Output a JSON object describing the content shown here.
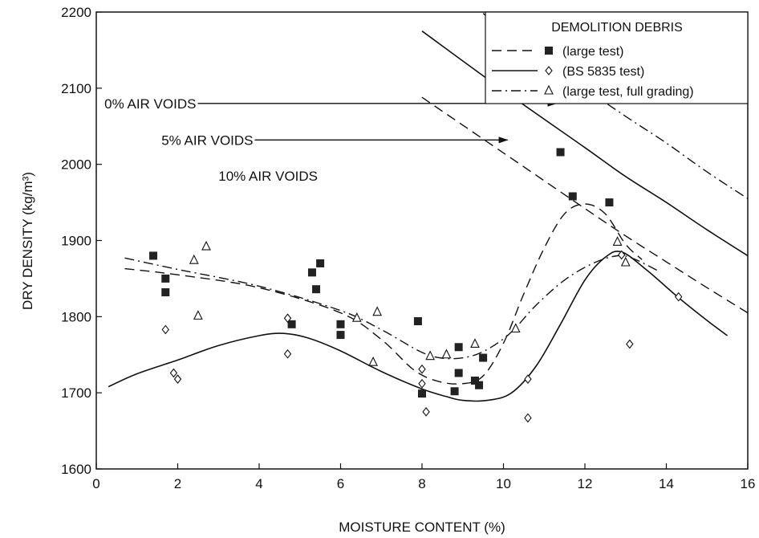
{
  "chart_data": {
    "type": "scatter",
    "xlabel": "MOISTURE CONTENT (%)",
    "ylabel": "DRY DENSITY (kg/m³)",
    "xlim": [
      0,
      16
    ],
    "ylim": [
      1600,
      2200
    ],
    "xticks": [
      0,
      2,
      4,
      6,
      8,
      10,
      12,
      14,
      16
    ],
    "yticks": [
      1600,
      1700,
      1800,
      1900,
      2000,
      2100,
      2200
    ],
    "grid": false,
    "legend": {
      "title": "DEMOLITION DEBRIS",
      "placement": "top-right",
      "entries": [
        "(large test)",
        "(BS 5835 test)",
        "(large test, full grading)"
      ]
    },
    "series": [
      {
        "name": "(large test)",
        "marker": "filled-square",
        "line": "dashed",
        "points": [
          [
            1.4,
            1880
          ],
          [
            1.7,
            1850
          ],
          [
            1.7,
            1832
          ],
          [
            4.8,
            1790
          ],
          [
            5.3,
            1858
          ],
          [
            5.4,
            1836
          ],
          [
            5.5,
            1870
          ],
          [
            6.0,
            1790
          ],
          [
            6.0,
            1776
          ],
          [
            7.9,
            1794
          ],
          [
            8.0,
            1699
          ],
          [
            8.8,
            1702
          ],
          [
            8.9,
            1760
          ],
          [
            8.9,
            1726
          ],
          [
            9.3,
            1716
          ],
          [
            9.4,
            1710
          ],
          [
            9.5,
            1746
          ],
          [
            11.4,
            2016
          ],
          [
            11.7,
            1958
          ],
          [
            12.6,
            1950
          ]
        ],
        "curve": [
          [
            0.7,
            1863
          ],
          [
            2.0,
            1855
          ],
          [
            4.0,
            1838
          ],
          [
            6.0,
            1805
          ],
          [
            7.0,
            1770
          ],
          [
            7.8,
            1730
          ],
          [
            8.4,
            1715
          ],
          [
            9.0,
            1712
          ],
          [
            9.5,
            1722
          ],
          [
            10.0,
            1765
          ],
          [
            10.5,
            1830
          ],
          [
            11.0,
            1890
          ],
          [
            11.5,
            1935
          ],
          [
            12.0,
            1948
          ],
          [
            12.5,
            1935
          ],
          [
            13.0,
            1895
          ],
          [
            13.4,
            1875
          ]
        ]
      },
      {
        "name": "(BS 5835 test)",
        "marker": "open-diamond",
        "line": "solid",
        "points": [
          [
            1.7,
            1783
          ],
          [
            1.9,
            1726
          ],
          [
            2.0,
            1718
          ],
          [
            4.7,
            1798
          ],
          [
            4.7,
            1751
          ],
          [
            8.0,
            1731
          ],
          [
            8.0,
            1712
          ],
          [
            8.1,
            1675
          ],
          [
            10.6,
            1718
          ],
          [
            10.6,
            1667
          ],
          [
            12.9,
            1881
          ],
          [
            13.1,
            1764
          ],
          [
            14.3,
            1826
          ]
        ],
        "curve": [
          [
            0.3,
            1708
          ],
          [
            1.0,
            1725
          ],
          [
            2.0,
            1743
          ],
          [
            3.0,
            1762
          ],
          [
            4.0,
            1775
          ],
          [
            4.6,
            1778
          ],
          [
            5.2,
            1772
          ],
          [
            6.0,
            1755
          ],
          [
            7.0,
            1728
          ],
          [
            8.0,
            1705
          ],
          [
            8.6,
            1695
          ],
          [
            9.0,
            1690
          ],
          [
            9.6,
            1690
          ],
          [
            10.2,
            1700
          ],
          [
            10.8,
            1735
          ],
          [
            11.4,
            1790
          ],
          [
            12.0,
            1848
          ],
          [
            12.5,
            1878
          ],
          [
            12.9,
            1885
          ],
          [
            13.5,
            1862
          ],
          [
            14.3,
            1825
          ],
          [
            15.0,
            1795
          ],
          [
            15.5,
            1775
          ]
        ]
      },
      {
        "name": "(large test, full grading)",
        "marker": "open-triangle",
        "line": "dash-dot",
        "points": [
          [
            2.4,
            1874
          ],
          [
            2.5,
            1801
          ],
          [
            2.7,
            1892
          ],
          [
            6.4,
            1798
          ],
          [
            6.8,
            1740
          ],
          [
            6.9,
            1806
          ],
          [
            8.2,
            1748
          ],
          [
            8.6,
            1750
          ],
          [
            9.3,
            1764
          ],
          [
            10.3,
            1784
          ],
          [
            12.8,
            1898
          ],
          [
            13.0,
            1871
          ]
        ],
        "curve": [
          [
            0.7,
            1877
          ],
          [
            2.0,
            1862
          ],
          [
            4.0,
            1840
          ],
          [
            6.0,
            1808
          ],
          [
            7.0,
            1783
          ],
          [
            8.0,
            1753
          ],
          [
            8.6,
            1745
          ],
          [
            9.2,
            1748
          ],
          [
            9.7,
            1760
          ],
          [
            10.2,
            1780
          ],
          [
            10.8,
            1815
          ],
          [
            11.5,
            1848
          ],
          [
            12.2,
            1870
          ],
          [
            12.8,
            1880
          ],
          [
            13.2,
            1876
          ],
          [
            13.8,
            1860
          ]
        ]
      }
    ],
    "reference_curves": [
      {
        "label": "0% AIR VOIDS",
        "line": "dash-dot",
        "points": [
          [
            8.0,
            2260
          ],
          [
            10.0,
            2178
          ],
          [
            12.0,
            2100
          ],
          [
            13.0,
            2063
          ],
          [
            14.0,
            2028
          ],
          [
            15.0,
            1990
          ],
          [
            16.0,
            1955
          ]
        ]
      },
      {
        "label": "5% AIR VOIDS",
        "line": "solid",
        "points": [
          [
            8.0,
            2175
          ],
          [
            10.0,
            2097
          ],
          [
            12.0,
            2022
          ],
          [
            13.0,
            1984
          ],
          [
            14.0,
            1950
          ],
          [
            15.0,
            1914
          ],
          [
            16.0,
            1880
          ]
        ]
      },
      {
        "label": "10% AIR VOIDS",
        "line": "dashed",
        "points": [
          [
            8.0,
            2088
          ],
          [
            10.0,
            2015
          ],
          [
            12.0,
            1942
          ],
          [
            13.0,
            1906
          ],
          [
            14.0,
            1872
          ],
          [
            15.0,
            1838
          ],
          [
            16.0,
            1805
          ]
        ]
      }
    ],
    "annotations": [
      {
        "text": "0% AIR VOIDS",
        "at": [
          0.2,
          2080
        ],
        "arrow_to": [
          11.3,
          2080
        ]
      },
      {
        "text": "5% AIR VOIDS",
        "at": [
          1.6,
          2032
        ],
        "arrow_to": [
          10.1,
          2032
        ]
      },
      {
        "text": "10% AIR VOIDS",
        "at": [
          3.0,
          1985
        ]
      }
    ]
  }
}
